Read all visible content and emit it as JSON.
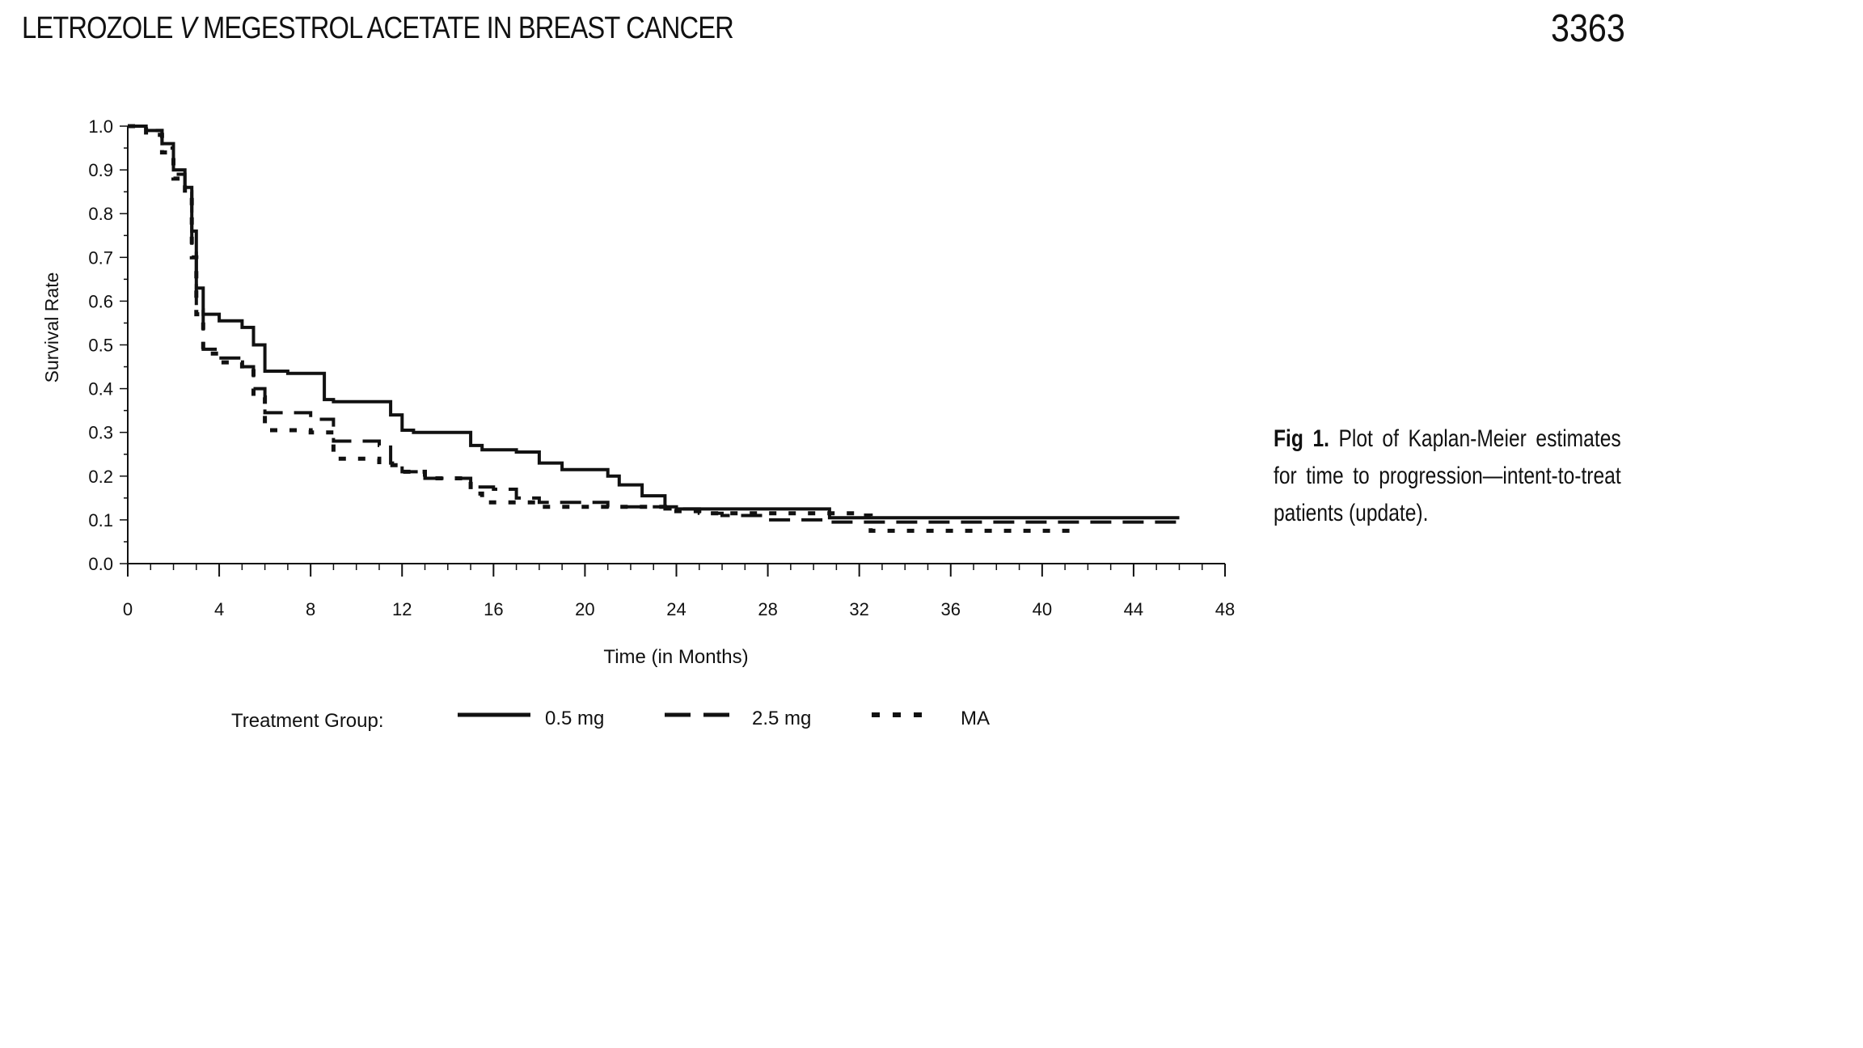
{
  "header": {
    "running_head_part1": "LETROZOLE ",
    "running_head_italic": "V",
    "running_head_part2": " MEGESTROL ACETATE IN BREAST CANCER",
    "page_number": "3363"
  },
  "caption": {
    "label": "Fig 1.",
    "text": "Plot of Kaplan-Meier estimates for time to progression—intent-to-treat patients (update)."
  },
  "chart_data": {
    "type": "line",
    "title": "",
    "xlabel": "Time (in Months)",
    "ylabel": "Survival Rate",
    "xlim": [
      0,
      48
    ],
    "ylim": [
      0,
      1.0
    ],
    "x_ticks": [
      0,
      4,
      8,
      12,
      16,
      20,
      24,
      28,
      32,
      36,
      40,
      44,
      48
    ],
    "y_ticks": [
      "0.0",
      "0.1",
      "0.2",
      "0.3",
      "0.4",
      "0.5",
      "0.6",
      "0.7",
      "0.8",
      "0.9",
      "1.0"
    ],
    "grid": false,
    "legend_title": "Treatment Group:",
    "legend_position": "bottom",
    "series": [
      {
        "name": "0.5 mg",
        "style": "solid",
        "points": [
          [
            0,
            1.0
          ],
          [
            0.8,
            0.99
          ],
          [
            1.5,
            0.96
          ],
          [
            2,
            0.9
          ],
          [
            2.5,
            0.86
          ],
          [
            2.8,
            0.76
          ],
          [
            3.0,
            0.63
          ],
          [
            3.3,
            0.57
          ],
          [
            4,
            0.555
          ],
          [
            5,
            0.54
          ],
          [
            5.5,
            0.5
          ],
          [
            6,
            0.44
          ],
          [
            7,
            0.435
          ],
          [
            8.2,
            0.435
          ],
          [
            8.6,
            0.375
          ],
          [
            9,
            0.37
          ],
          [
            11,
            0.37
          ],
          [
            11.5,
            0.34
          ],
          [
            12,
            0.305
          ],
          [
            12.5,
            0.3
          ],
          [
            14.5,
            0.3
          ],
          [
            15,
            0.27
          ],
          [
            15.5,
            0.26
          ],
          [
            17,
            0.255
          ],
          [
            18,
            0.23
          ],
          [
            19,
            0.215
          ],
          [
            21,
            0.2
          ],
          [
            21.5,
            0.18
          ],
          [
            22.5,
            0.155
          ],
          [
            23.5,
            0.13
          ],
          [
            24,
            0.125
          ],
          [
            30.6,
            0.125
          ],
          [
            30.7,
            0.105
          ],
          [
            46,
            0.105
          ]
        ]
      },
      {
        "name": "2.5 mg",
        "style": "dashed",
        "points": [
          [
            0,
            1.0
          ],
          [
            0.8,
            0.99
          ],
          [
            1.5,
            0.95
          ],
          [
            2,
            0.89
          ],
          [
            2.5,
            0.85
          ],
          [
            2.8,
            0.72
          ],
          [
            3.0,
            0.58
          ],
          [
            3.3,
            0.49
          ],
          [
            4,
            0.47
          ],
          [
            5,
            0.45
          ],
          [
            5.5,
            0.4
          ],
          [
            6,
            0.345
          ],
          [
            7.5,
            0.345
          ],
          [
            8,
            0.33
          ],
          [
            9,
            0.28
          ],
          [
            11,
            0.27
          ],
          [
            11.5,
            0.23
          ],
          [
            12,
            0.21
          ],
          [
            13,
            0.195
          ],
          [
            15,
            0.175
          ],
          [
            16,
            0.17
          ],
          [
            17,
            0.15
          ],
          [
            18,
            0.14
          ],
          [
            21,
            0.13
          ],
          [
            23.5,
            0.125
          ],
          [
            25,
            0.115
          ],
          [
            26,
            0.11
          ],
          [
            28,
            0.1
          ],
          [
            30,
            0.1
          ],
          [
            30.7,
            0.095
          ],
          [
            46,
            0.1
          ]
        ]
      },
      {
        "name": "MA",
        "style": "dotted",
        "points": [
          [
            0,
            1.0
          ],
          [
            0.8,
            0.98
          ],
          [
            1.5,
            0.94
          ],
          [
            2,
            0.88
          ],
          [
            2.5,
            0.84
          ],
          [
            2.8,
            0.7
          ],
          [
            3.0,
            0.57
          ],
          [
            3.3,
            0.48
          ],
          [
            4,
            0.46
          ],
          [
            5,
            0.44
          ],
          [
            5.5,
            0.38
          ],
          [
            6,
            0.305
          ],
          [
            8,
            0.3
          ],
          [
            9,
            0.24
          ],
          [
            11,
            0.225
          ],
          [
            12,
            0.21
          ],
          [
            13,
            0.195
          ],
          [
            15,
            0.16
          ],
          [
            15.5,
            0.14
          ],
          [
            17,
            0.14
          ],
          [
            18,
            0.13
          ],
          [
            21,
            0.13
          ],
          [
            23.5,
            0.12
          ],
          [
            25,
            0.115
          ],
          [
            32,
            0.11
          ],
          [
            32.5,
            0.075
          ],
          [
            41.5,
            0.07
          ]
        ]
      }
    ]
  }
}
